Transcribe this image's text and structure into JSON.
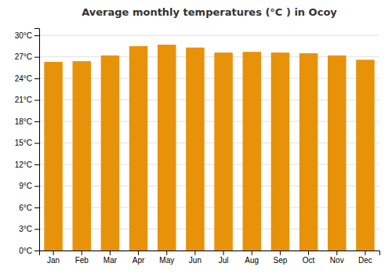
{
  "chart_data": {
    "type": "bar",
    "title": "Average monthly temperatures (°C ) in Ocoy",
    "categories": [
      "Jan",
      "Feb",
      "Mar",
      "Apr",
      "May",
      "Jun",
      "Jul",
      "Aug",
      "Sep",
      "Oct",
      "Nov",
      "Dec"
    ],
    "values": [
      26.3,
      26.4,
      27.2,
      28.5,
      28.7,
      28.3,
      27.6,
      27.7,
      27.6,
      27.5,
      27.2,
      26.6
    ],
    "color": "#E8920A",
    "ylim": [
      0,
      31
    ],
    "yticks": [
      {
        "value": 0,
        "label": "0°C"
      },
      {
        "value": 3,
        "label": "3°C"
      },
      {
        "value": 6,
        "label": "6°C"
      },
      {
        "value": 9,
        "label": "9°C"
      },
      {
        "value": 12,
        "label": "12°C"
      },
      {
        "value": 15,
        "label": "15°C"
      },
      {
        "value": 18,
        "label": "18°C"
      },
      {
        "value": 21,
        "label": "21°C"
      },
      {
        "value": 24,
        "label": "24°C"
      },
      {
        "value": 27,
        "label": "27°C"
      },
      {
        "value": 30,
        "label": "30°C"
      }
    ],
    "grid": true
  }
}
